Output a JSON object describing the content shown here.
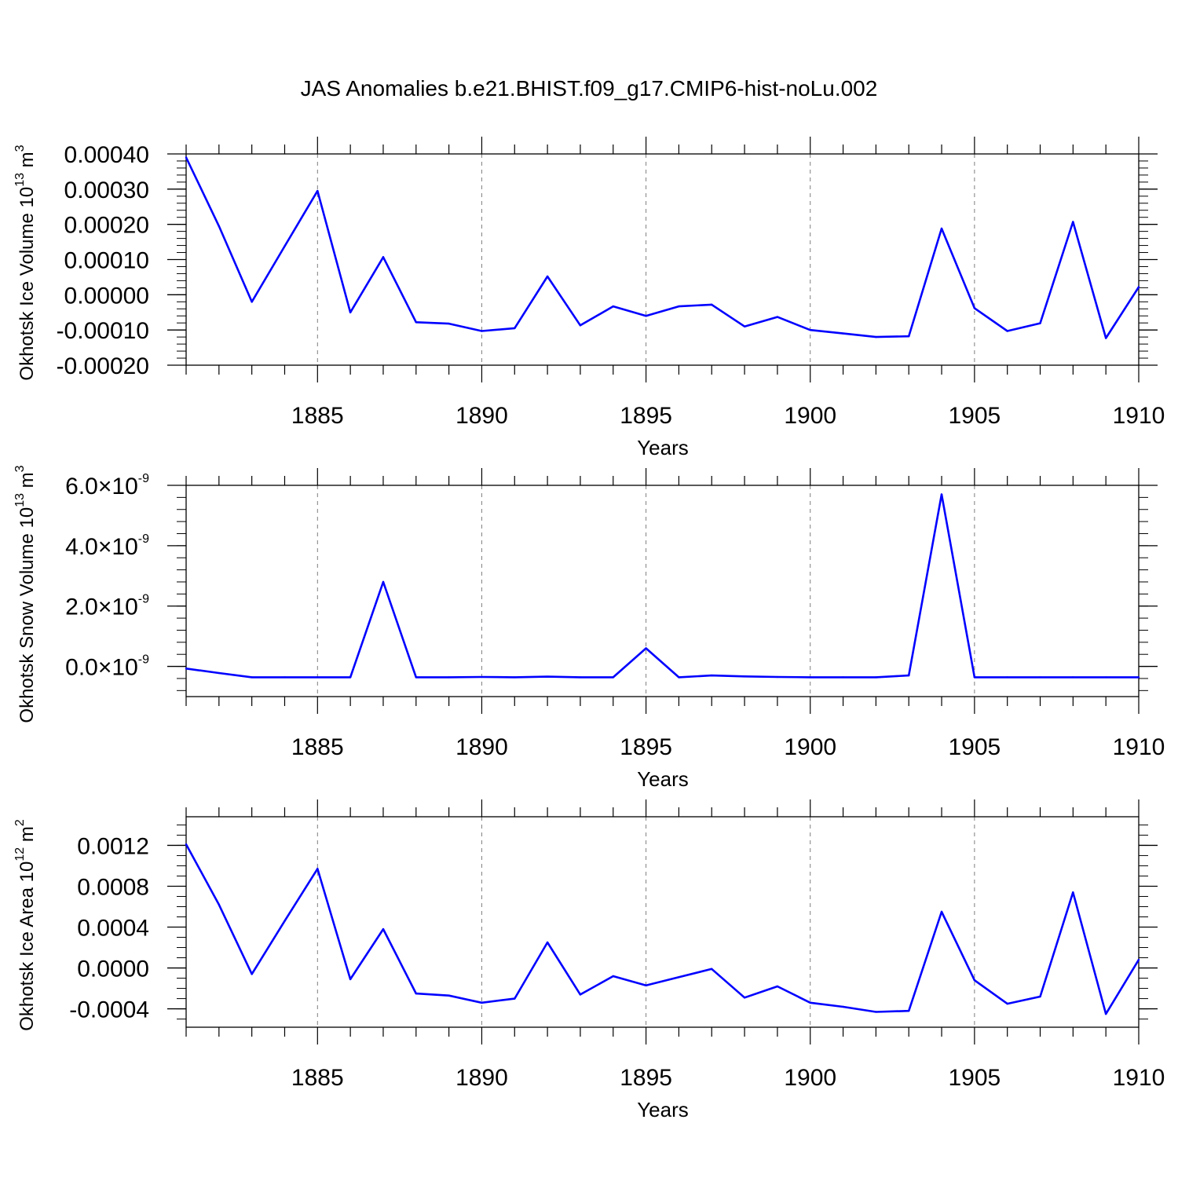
{
  "title": "JAS Anomalies b.e21.BHIST.f09_g17.CMIP6-hist-noLu.002",
  "colors": {
    "line": "#0000ff",
    "axis": "#000000",
    "grid": "#7f7f7f"
  },
  "chart_data": [
    {
      "type": "line",
      "name": "ice-volume",
      "ylabel": {
        "text": "Okhotsk Ice Volume 10",
        "exp": "13",
        "unit": " m",
        "unit_exp": "3"
      },
      "xlabel": "Years",
      "xlim": [
        1881,
        1910
      ],
      "ylim": [
        -0.0002,
        0.0004
      ],
      "xticks": [
        1885,
        1890,
        1895,
        1900,
        1905,
        1910
      ],
      "xtick_labels": [
        "1885",
        "1890",
        "1895",
        "1900",
        "1905",
        "1910"
      ],
      "yticks": [
        0.0004,
        0.0003,
        0.0002,
        0.0001,
        0.0,
        -0.0001,
        -0.0002
      ],
      "ytick_labels": [
        "0.00040",
        "0.00030",
        "0.00020",
        "0.00010",
        "0.00000",
        "-0.00010",
        "-0.00020"
      ],
      "yminor": 2e-05,
      "grid_x": [
        1885,
        1890,
        1895,
        1900,
        1905
      ],
      "x": [
        1881,
        1882,
        1883,
        1884,
        1885,
        1886,
        1887,
        1888,
        1889,
        1890,
        1891,
        1892,
        1893,
        1894,
        1895,
        1896,
        1897,
        1898,
        1899,
        1900,
        1901,
        1902,
        1903,
        1904,
        1905,
        1906,
        1907,
        1908,
        1909,
        1910
      ],
      "values": [
        0.00039,
        0.000195,
        -2e-05,
        0.000138,
        0.000295,
        -5e-05,
        0.000107,
        -7.8e-05,
        -8.2e-05,
        -0.000103,
        -9.5e-05,
        5.2e-05,
        -8.7e-05,
        -3.3e-05,
        -6e-05,
        -3.3e-05,
        -2.8e-05,
        -9e-05,
        -6.3e-05,
        -0.0001,
        -0.00011,
        -0.00012,
        -0.000118,
        0.000188,
        -3.8e-05,
        -0.000103,
        -8.1e-05,
        0.000207,
        -0.000123,
        2.2e-05
      ]
    },
    {
      "type": "line",
      "name": "snow-volume",
      "ylabel": {
        "text": "Okhotsk Snow Volume 10",
        "exp": "13",
        "unit": " m",
        "unit_exp": "3"
      },
      "xlabel": "Years",
      "xlim": [
        1881,
        1910
      ],
      "ylim": [
        -1e-09,
        6e-09
      ],
      "xticks": [
        1885,
        1890,
        1895,
        1900,
        1905,
        1910
      ],
      "xtick_labels": [
        "1885",
        "1890",
        "1895",
        "1900",
        "1905",
        "1910"
      ],
      "yticks": [
        6e-09,
        4e-09,
        2e-09,
        0.0
      ],
      "ytick_labels": [
        {
          "mant": "6.0",
          "times": "×10",
          "exp": "-9"
        },
        {
          "mant": "4.0",
          "times": "×10",
          "exp": "-9"
        },
        {
          "mant": "2.0",
          "times": "×10",
          "exp": "-9"
        },
        {
          "mant": "0.0",
          "times": "×10",
          "exp": "-9"
        }
      ],
      "yminor": 4e-10,
      "grid_x": [
        1885,
        1890,
        1895,
        1900,
        1905
      ],
      "x": [
        1881,
        1882,
        1883,
        1884,
        1885,
        1886,
        1887,
        1888,
        1889,
        1890,
        1891,
        1892,
        1893,
        1894,
        1895,
        1896,
        1897,
        1898,
        1899,
        1900,
        1901,
        1902,
        1903,
        1904,
        1905,
        1906,
        1907,
        1908,
        1909,
        1910
      ],
      "values": [
        -7e-11,
        -2.2e-10,
        -3.6e-10,
        -3.6e-10,
        -3.6e-10,
        -3.6e-10,
        2.8e-09,
        -3.6e-10,
        -3.6e-10,
        -3.5e-10,
        -3.6e-10,
        -3.4e-10,
        -3.6e-10,
        -3.6e-10,
        6e-10,
        -3.6e-10,
        -3e-10,
        -3.3e-10,
        -3.5e-10,
        -3.6e-10,
        -3.6e-10,
        -3.6e-10,
        -3e-10,
        5.7e-09,
        -3.6e-10,
        -3.6e-10,
        -3.6e-10,
        -3.6e-10,
        -3.6e-10,
        -3.6e-10
      ]
    },
    {
      "type": "line",
      "name": "ice-area",
      "ylabel": {
        "text": "Okhotsk Ice Area 10",
        "exp": "12",
        "unit": " m",
        "unit_exp": "2"
      },
      "xlabel": "Years",
      "xlim": [
        1881,
        1910
      ],
      "ylim": [
        -0.00058,
        0.00148
      ],
      "xticks": [
        1885,
        1890,
        1895,
        1900,
        1905,
        1910
      ],
      "xtick_labels": [
        "1885",
        "1890",
        "1895",
        "1900",
        "1905",
        "1910"
      ],
      "yticks": [
        0.0012,
        0.0008,
        0.0004,
        0.0,
        -0.0004
      ],
      "ytick_labels": [
        "0.0012",
        "0.0008",
        "0.0004",
        "0.0000",
        "-0.0004"
      ],
      "yminor": 0.0001,
      "grid_x": [
        1885,
        1890,
        1895,
        1900,
        1905
      ],
      "x": [
        1881,
        1882,
        1883,
        1884,
        1885,
        1886,
        1887,
        1888,
        1889,
        1890,
        1891,
        1892,
        1893,
        1894,
        1895,
        1896,
        1897,
        1898,
        1899,
        1900,
        1901,
        1902,
        1903,
        1904,
        1905,
        1906,
        1907,
        1908,
        1909,
        1910
      ],
      "values": [
        0.00121,
        0.00062,
        -6e-05,
        0.00046,
        0.00097,
        -0.00011,
        0.00038,
        -0.00025,
        -0.00027,
        -0.00034,
        -0.0003,
        0.00025,
        -0.00026,
        -8e-05,
        -0.00017,
        -9e-05,
        -1e-05,
        -0.00029,
        -0.00018,
        -0.00034,
        -0.00038,
        -0.00043,
        -0.00042,
        0.00055,
        -0.00012,
        -0.00035,
        -0.00028,
        0.00074,
        -0.00045,
        8e-05
      ]
    }
  ]
}
